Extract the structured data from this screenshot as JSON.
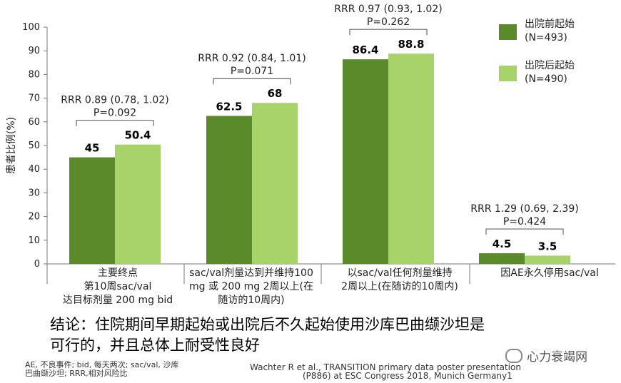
{
  "chart_data": {
    "type": "bar",
    "ylabel": "患者比例(%)",
    "ylim": [
      0,
      100
    ],
    "yticks": [
      0,
      10,
      20,
      30,
      40,
      50,
      60,
      70,
      80,
      90,
      100
    ],
    "grid": false,
    "legend_position": "top-right",
    "categories": [
      [
        "主要终点",
        "第10周sac/val",
        "达目标剂量 200 mg bid"
      ],
      [
        "sac/val剂量达到并维持100",
        "mg 或 200 mg 2周以上(在",
        "随访的10周内)"
      ],
      [
        "以sac/val任何剂量维持",
        "2周以上(在随访的10周内)"
      ],
      [
        "因AE永久停用sac/val"
      ]
    ],
    "series": [
      {
        "name": "出院前起始",
        "n_label": "(N=493)",
        "color": "#5a8a2a",
        "values": [
          45,
          62.5,
          86.4,
          4.5
        ],
        "labels": [
          "45",
          "62.5",
          "86.4",
          "4.5"
        ]
      },
      {
        "name": "出院后起始",
        "n_label": "(N=490)",
        "color": "#a8d26a",
        "values": [
          50.4,
          68,
          88.8,
          3.5
        ],
        "labels": [
          "50.4",
          "68",
          "88.8",
          "3.5"
        ]
      }
    ],
    "annotations": [
      {
        "rrr": "RRR 0.89 (0.78, 1.02)",
        "p": "P=0.092"
      },
      {
        "rrr": "RRR 0.92 (0.84, 1.01)",
        "p": "P=0.071"
      },
      {
        "rrr": "RRR 0.97 (0.93, 1.02)",
        "p": "P=0.262"
      },
      {
        "rrr": "RRR 1.29 (0.69, 2.39)",
        "p": "P=0.424"
      }
    ]
  },
  "conclusion": [
    "结论：住院期间早期起始或出院后不久起始使用沙库巴曲缬沙坦是",
    "可行的，并且总体上耐受性良好"
  ],
  "footnote": [
    "AE, 不良事件; bid, 每天两次; sac/val, 沙库",
    "巴曲缬沙坦; RRR,相对风险比"
  ],
  "citation": [
    "Wachter R et al., TRANSITION primary data poster presentation",
    "(P886) at ESC Congress 2018, Munich Germany1"
  ],
  "watermark": "心力衰竭网"
}
